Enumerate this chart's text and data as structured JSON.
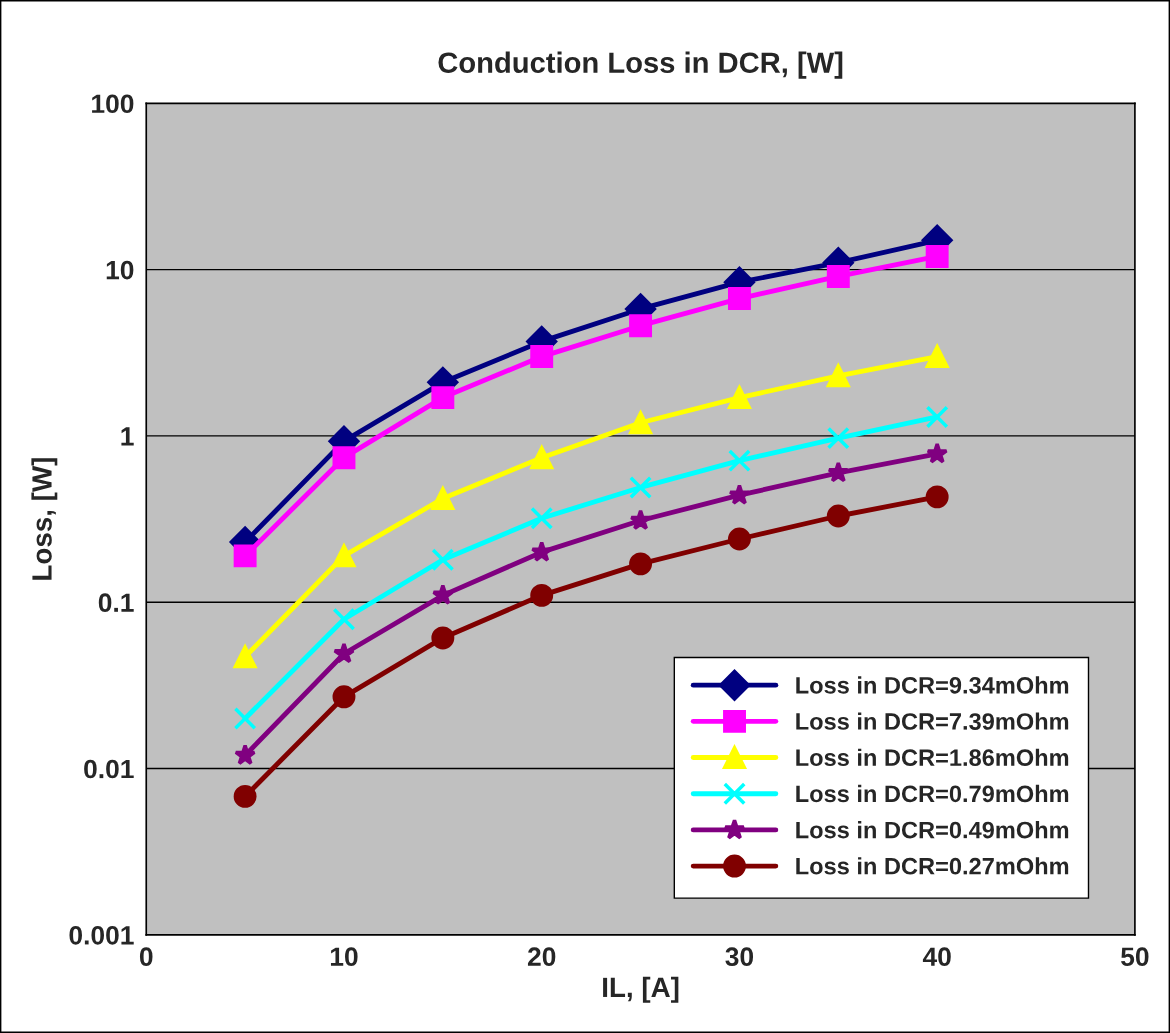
{
  "chart_data": {
    "type": "line",
    "title": "Conduction Loss in DCR, [W]",
    "xlabel": "IL, [A]",
    "ylabel": "Loss, [W]",
    "x": [
      5,
      10,
      15,
      20,
      25,
      30,
      35,
      40
    ],
    "series": [
      {
        "name": "Loss in DCR=9.34mOhm",
        "color": "#000080",
        "marker": "diamond",
        "values": [
          0.23,
          0.93,
          2.1,
          3.7,
          5.8,
          8.4,
          11,
          15
        ]
      },
      {
        "name": "Loss in DCR=7.39mOhm",
        "color": "#ff00ff",
        "marker": "square",
        "values": [
          0.19,
          0.74,
          1.7,
          3.0,
          4.6,
          6.7,
          9.1,
          12
        ]
      },
      {
        "name": "Loss in DCR=1.86mOhm",
        "color": "#ffff00",
        "marker": "triangle",
        "values": [
          0.047,
          0.19,
          0.42,
          0.74,
          1.2,
          1.7,
          2.3,
          3.0
        ]
      },
      {
        "name": "Loss in DCR=0.79mOhm",
        "color": "#00ffff",
        "marker": "cross",
        "values": [
          0.02,
          0.079,
          0.18,
          0.32,
          0.49,
          0.71,
          0.97,
          1.3
        ]
      },
      {
        "name": "Loss in DCR=0.49mOhm",
        "color": "#800080",
        "marker": "star",
        "values": [
          0.012,
          0.049,
          0.11,
          0.2,
          0.31,
          0.44,
          0.6,
          0.78
        ]
      },
      {
        "name": "Loss in DCR=0.27mOhm",
        "color": "#800000",
        "marker": "circle",
        "values": [
          0.0068,
          0.027,
          0.061,
          0.11,
          0.17,
          0.24,
          0.33,
          0.43
        ]
      }
    ],
    "log": "y",
    "xlim": [
      0,
      50
    ],
    "xticks": [
      0,
      10,
      20,
      30,
      40,
      50
    ],
    "ylim": [
      0.001,
      100
    ],
    "yticks": [
      0.001,
      0.01,
      0.1,
      1,
      10,
      100
    ],
    "grid": "y",
    "legend": "bottom right"
  }
}
